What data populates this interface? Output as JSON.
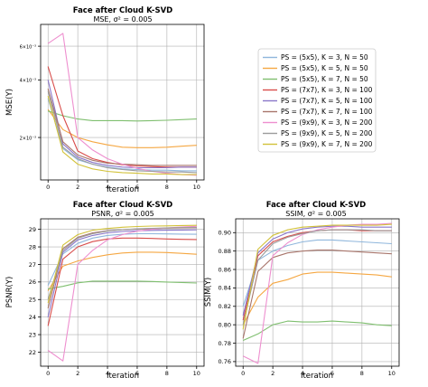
{
  "legend": {
    "entries": [
      {
        "label": "PS = (5x5), K = 3, N = 50",
        "color": "#8fb6dc"
      },
      {
        "label": "PS = (5x5), K = 5, N = 50",
        "color": "#f5a742"
      },
      {
        "label": "PS = (5x5), K = 7, N = 50",
        "color": "#7fbf6f"
      },
      {
        "label": "PS = (7x7), K = 3, N = 100",
        "color": "#d84c4a"
      },
      {
        "label": "PS = (7x7), K = 5, N = 100",
        "color": "#8a76c9"
      },
      {
        "label": "PS = (7x7), K = 7, N = 100",
        "color": "#a8756b"
      },
      {
        "label": "PS = (9x9), K = 3, N = 200",
        "color": "#ee8fcf"
      },
      {
        "label": "PS = (9x9), K = 5, N = 200",
        "color": "#9b9b9b"
      },
      {
        "label": "PS = (9x9), K = 7, N = 200",
        "color": "#d2c23a"
      }
    ]
  },
  "chart_data": [
    {
      "type": "line",
      "title": "Face after Cloud K-SVD",
      "subtitle": "MSE, σ² = 0.005",
      "xlabel": "Iteration",
      "ylabel": "MSE(Y)",
      "yscale": "log",
      "xlim": [
        -0.5,
        10.5
      ],
      "ylim": [
        0.0012,
        0.0078
      ],
      "xticks": [
        0,
        2,
        4,
        6,
        8,
        10
      ],
      "xtick_labels": [
        "0",
        "2",
        "4",
        "6",
        "8",
        "10"
      ],
      "yticks": [
        0.002,
        0.004,
        0.006
      ],
      "ytick_labels": [
        "2×10⁻³",
        "4×10⁻³",
        "6×10⁻³"
      ],
      "grid": true,
      "x": [
        0,
        1,
        2,
        3,
        4,
        5,
        6,
        7,
        8,
        9,
        10
      ],
      "series": [
        {
          "values": [
            0.0032,
            0.00175,
            0.00153,
            0.00145,
            0.0014,
            0.00137,
            0.00136,
            0.00135,
            0.00135,
            0.00134,
            0.00134
          ]
        },
        {
          "values": [
            0.0028,
            0.0022,
            0.002,
            0.0019,
            0.00183,
            0.00178,
            0.00177,
            0.00177,
            0.00178,
            0.0018,
            0.00182
          ]
        },
        {
          "values": [
            0.00275,
            0.0026,
            0.0025,
            0.00245,
            0.00245,
            0.00245,
            0.00244,
            0.00245,
            0.00246,
            0.00248,
            0.0025
          ]
        },
        {
          "values": [
            0.0047,
            0.0026,
            0.0017,
            0.00155,
            0.00148,
            0.00144,
            0.00142,
            0.00141,
            0.0014,
            0.0014,
            0.0014
          ]
        },
        {
          "values": [
            0.004,
            0.00185,
            0.00158,
            0.00148,
            0.00143,
            0.0014,
            0.00139,
            0.00139,
            0.00139,
            0.0014,
            0.0014
          ]
        },
        {
          "values": [
            0.0036,
            0.0019,
            0.00162,
            0.00152,
            0.00147,
            0.00145,
            0.00144,
            0.00143,
            0.00143,
            0.00143,
            0.00143
          ]
        },
        {
          "values": [
            0.0062,
            0.007,
            0.002,
            0.00172,
            0.00155,
            0.00145,
            0.00138,
            0.00133,
            0.0013,
            0.00128,
            0.00127
          ]
        },
        {
          "values": [
            0.0035,
            0.00178,
            0.00155,
            0.00145,
            0.00139,
            0.00136,
            0.00134,
            0.00133,
            0.00132,
            0.00132,
            0.00131
          ]
        },
        {
          "values": [
            0.0033,
            0.00168,
            0.00145,
            0.00137,
            0.00133,
            0.00131,
            0.0013,
            0.00129,
            0.00129,
            0.00128,
            0.00128
          ]
        }
      ]
    },
    {
      "type": "line",
      "title": "Face after Cloud K-SVD",
      "subtitle": "PSNR, σ² = 0.005",
      "xlabel": "Iteration",
      "ylabel": "PSNR(Y)",
      "yscale": "linear",
      "xlim": [
        -0.5,
        10.5
      ],
      "ylim": [
        21.2,
        29.6
      ],
      "xticks": [
        0,
        2,
        4,
        6,
        8,
        10
      ],
      "xtick_labels": [
        "0",
        "2",
        "4",
        "6",
        "8",
        "10"
      ],
      "yticks": [
        22,
        23,
        24,
        25,
        26,
        27,
        28,
        29
      ],
      "ytick_labels": [
        "22",
        "23",
        "24",
        "25",
        "26",
        "27",
        "28",
        "29"
      ],
      "grid": true,
      "x": [
        0,
        1,
        2,
        3,
        4,
        5,
        6,
        7,
        8,
        9,
        10
      ],
      "series": [
        {
          "values": [
            25.8,
            27.6,
            28.2,
            28.5,
            28.65,
            28.72,
            28.75,
            28.75,
            28.74,
            28.73,
            28.72
          ]
        },
        {
          "values": [
            25.5,
            26.9,
            27.2,
            27.4,
            27.55,
            27.65,
            27.7,
            27.7,
            27.68,
            27.63,
            27.58
          ]
        },
        {
          "values": [
            25.6,
            25.75,
            25.95,
            26.05,
            26.05,
            26.05,
            26.05,
            26.03,
            26.0,
            25.97,
            25.94
          ]
        },
        {
          "values": [
            23.5,
            27.3,
            28.0,
            28.3,
            28.45,
            28.5,
            28.5,
            28.48,
            28.45,
            28.43,
            28.42
          ]
        },
        {
          "values": [
            24.0,
            27.7,
            28.4,
            28.65,
            28.8,
            28.88,
            28.92,
            28.94,
            28.95,
            28.96,
            28.97
          ]
        },
        {
          "values": [
            24.5,
            27.9,
            28.55,
            28.8,
            28.92,
            28.98,
            29.02,
            29.05,
            29.07,
            29.08,
            29.09
          ]
        },
        {
          "values": [
            22.1,
            21.5,
            27.0,
            27.8,
            28.4,
            28.7,
            28.9,
            29.0,
            29.08,
            29.13,
            29.17
          ]
        },
        {
          "values": [
            25.0,
            27.8,
            28.5,
            28.75,
            28.9,
            28.98,
            29.03,
            29.06,
            29.08,
            29.1,
            29.11
          ]
        },
        {
          "values": [
            24.8,
            28.1,
            28.7,
            28.95,
            29.05,
            29.12,
            29.16,
            29.19,
            29.2,
            29.22,
            29.23
          ]
        }
      ]
    },
    {
      "type": "line",
      "title": "Face after Cloud K-SVD",
      "subtitle": "SSIM, σ² = 0.005",
      "xlabel": "Iteration",
      "ylabel": "SSIM(Y)",
      "yscale": "linear",
      "xlim": [
        -0.5,
        10.5
      ],
      "ylim": [
        0.755,
        0.915
      ],
      "xticks": [
        0,
        2,
        4,
        6,
        8,
        10
      ],
      "xtick_labels": [
        "0",
        "2",
        "4",
        "6",
        "8",
        "10"
      ],
      "yticks": [
        0.76,
        0.78,
        0.8,
        0.82,
        0.84,
        0.86,
        0.88,
        0.9
      ],
      "ytick_labels": [
        "0.76",
        "0.78",
        "0.80",
        "0.82",
        "0.84",
        "0.86",
        "0.88",
        "0.90"
      ],
      "grid": true,
      "x": [
        0,
        1,
        2,
        3,
        4,
        5,
        6,
        7,
        8,
        9,
        10
      ],
      "series": [
        {
          "values": [
            0.82,
            0.87,
            0.88,
            0.886,
            0.89,
            0.892,
            0.892,
            0.891,
            0.89,
            0.889,
            0.888
          ]
        },
        {
          "values": [
            0.8,
            0.83,
            0.845,
            0.849,
            0.855,
            0.857,
            0.857,
            0.856,
            0.855,
            0.854,
            0.852
          ]
        },
        {
          "values": [
            0.783,
            0.79,
            0.8,
            0.804,
            0.803,
            0.803,
            0.804,
            0.803,
            0.802,
            0.8,
            0.799
          ]
        },
        {
          "values": [
            0.805,
            0.875,
            0.89,
            0.896,
            0.9,
            0.902,
            0.903,
            0.903,
            0.902,
            0.902,
            0.902
          ]
        },
        {
          "values": [
            0.81,
            0.878,
            0.893,
            0.9,
            0.904,
            0.906,
            0.907,
            0.907,
            0.906,
            0.906,
            0.906
          ]
        },
        {
          "values": [
            0.785,
            0.858,
            0.873,
            0.878,
            0.88,
            0.881,
            0.881,
            0.88,
            0.879,
            0.878,
            0.877
          ]
        },
        {
          "values": [
            0.766,
            0.758,
            0.875,
            0.889,
            0.898,
            0.903,
            0.906,
            0.908,
            0.909,
            0.909,
            0.91
          ]
        },
        {
          "values": [
            0.8,
            0.87,
            0.888,
            0.895,
            0.899,
            0.902,
            0.903,
            0.903,
            0.903,
            0.902,
            0.902
          ]
        },
        {
          "values": [
            0.795,
            0.882,
            0.897,
            0.903,
            0.906,
            0.907,
            0.908,
            0.908,
            0.908,
            0.908,
            0.909
          ]
        }
      ]
    }
  ]
}
